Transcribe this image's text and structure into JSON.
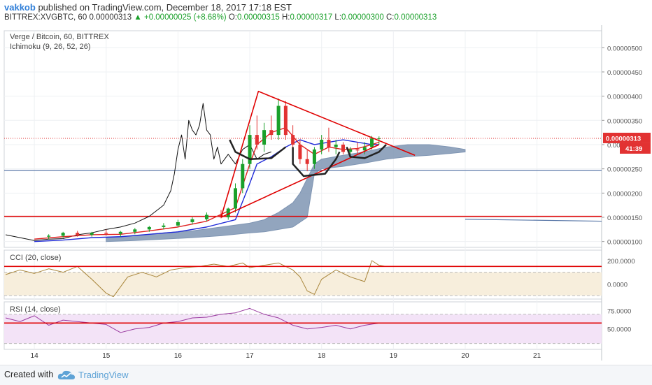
{
  "header": {
    "author": "vakkob",
    "published": "published on TradingView.com, December 18, 2017 17:18 EST",
    "symbol": "BITTREX:XVGBTC, 60",
    "last": "0.00000313",
    "change": "▲ +0.00000025 (+8.68%)",
    "o_label": "O:",
    "o": "0.00000315",
    "h_label": "H:",
    "h": "0.00000317",
    "l_label": "L:",
    "l": "0.00000300",
    "c_label": "C:",
    "c": "0.00000313"
  },
  "footer": {
    "created": "Created with",
    "brand": "TradingView",
    "logo_icon": "tradingview-cloud-icon"
  },
  "colors": {
    "up": "#1aa02a",
    "down": "#e23232",
    "cloud": "#7f95b3",
    "trend": "#e00000",
    "hline": "#5a78a8",
    "cci": "#a8853a",
    "rsi": "#9a3aa0",
    "tenkan": "#e02020",
    "kijun": "#1f2ad8"
  },
  "chart_data": [
    {
      "type": "candlestick",
      "title": "Verge / Bitcoin, 60, BITTREX",
      "subtitle": "Ichimoku (9, 26, 52, 26)",
      "y_tick_labels": [
        "0.00000100",
        "0.00000150",
        "0.00000200",
        "0.00000250",
        "0.00000300",
        "0.00000350",
        "0.00000400",
        "0.00000450",
        "0.00000500"
      ],
      "y_ticks": [
        1.0,
        1.5,
        2.0,
        2.5,
        3.0,
        3.5,
        4.0,
        4.5,
        5.0
      ],
      "ylim": [
        0.88,
        5.35
      ],
      "y_unit_note": "×1e-6 BTC",
      "x_tick_labels": [
        "14",
        "15",
        "16",
        "17",
        "18",
        "19",
        "20",
        "21"
      ],
      "x_ticks": [
        14,
        15,
        16,
        17,
        18,
        19,
        20,
        21
      ],
      "xlim": [
        13.58,
        21.9
      ],
      "last_price_label": "0.00000313",
      "countdown_label": "41:39",
      "last_price": 3.13,
      "lagging_span": [
        [
          13.6,
          1.14
        ],
        [
          13.8,
          1.08
        ],
        [
          14.0,
          1.02
        ],
        [
          14.2,
          1.05
        ],
        [
          14.4,
          1.06
        ],
        [
          14.6,
          1.14
        ],
        [
          14.8,
          1.18
        ],
        [
          15.0,
          1.25
        ],
        [
          15.2,
          1.3
        ],
        [
          15.4,
          1.38
        ],
        [
          15.6,
          1.52
        ],
        [
          15.8,
          1.75
        ],
        [
          15.9,
          2.05
        ],
        [
          15.95,
          2.4
        ],
        [
          16.0,
          2.9
        ],
        [
          16.05,
          3.2
        ],
        [
          16.1,
          2.7
        ],
        [
          16.15,
          3.5
        ],
        [
          16.2,
          3.3
        ],
        [
          16.25,
          3.2
        ],
        [
          16.3,
          3.4
        ],
        [
          16.35,
          3.85
        ],
        [
          16.4,
          3.3
        ],
        [
          16.45,
          3.2
        ],
        [
          16.5,
          2.7
        ],
        [
          16.55,
          2.95
        ],
        [
          16.6,
          2.6
        ],
        [
          16.7,
          2.8
        ],
        [
          16.8,
          2.6
        ],
        [
          16.9,
          2.9
        ],
        [
          17.0,
          3.0
        ],
        [
          17.1,
          2.7
        ],
        [
          17.2,
          2.8
        ],
        [
          17.3,
          2.85
        ]
      ],
      "candles_ohlc": [
        [
          14.2,
          1.1,
          1.15,
          1.05,
          1.12
        ],
        [
          14.4,
          1.12,
          1.2,
          1.08,
          1.18
        ],
        [
          14.6,
          1.18,
          1.22,
          1.1,
          1.14
        ],
        [
          14.8,
          1.14,
          1.2,
          1.1,
          1.18
        ],
        [
          15.0,
          1.18,
          1.25,
          1.12,
          1.16
        ],
        [
          15.2,
          1.16,
          1.22,
          1.1,
          1.2
        ],
        [
          15.4,
          1.2,
          1.28,
          1.15,
          1.25
        ],
        [
          15.6,
          1.25,
          1.32,
          1.2,
          1.3
        ],
        [
          15.8,
          1.3,
          1.38,
          1.25,
          1.33
        ],
        [
          16.0,
          1.33,
          1.45,
          1.3,
          1.4
        ],
        [
          16.2,
          1.4,
          1.5,
          1.35,
          1.46
        ],
        [
          16.4,
          1.46,
          1.6,
          1.42,
          1.55
        ],
        [
          16.6,
          1.55,
          1.65,
          1.48,
          1.5
        ],
        [
          16.7,
          1.5,
          1.7,
          1.45,
          1.68
        ],
        [
          16.8,
          1.68,
          2.2,
          1.6,
          2.1
        ],
        [
          16.9,
          2.1,
          2.7,
          2.0,
          2.6
        ],
        [
          17.0,
          2.6,
          3.4,
          2.5,
          3.2
        ],
        [
          17.1,
          3.2,
          3.6,
          2.9,
          3.0
        ],
        [
          17.2,
          3.0,
          3.45,
          2.85,
          3.3
        ],
        [
          17.3,
          3.3,
          3.6,
          3.1,
          3.2
        ],
        [
          17.4,
          3.2,
          3.95,
          3.1,
          3.8
        ],
        [
          17.5,
          3.8,
          3.9,
          3.1,
          3.2
        ],
        [
          17.6,
          3.2,
          3.4,
          2.9,
          3.0
        ],
        [
          17.7,
          3.0,
          3.1,
          2.6,
          2.7
        ],
        [
          17.8,
          2.7,
          2.9,
          2.45,
          2.6
        ],
        [
          17.9,
          2.6,
          2.95,
          2.5,
          2.9
        ],
        [
          18.0,
          2.9,
          3.2,
          2.8,
          3.1
        ],
        [
          18.1,
          3.1,
          3.35,
          2.85,
          2.95
        ],
        [
          18.2,
          2.95,
          3.1,
          2.8,
          3.0
        ],
        [
          18.3,
          3.0,
          3.05,
          2.8,
          2.85
        ],
        [
          18.4,
          2.85,
          2.95,
          2.75,
          2.9
        ],
        [
          18.5,
          2.9,
          3.05,
          2.8,
          2.88
        ],
        [
          18.6,
          2.88,
          3.05,
          2.8,
          2.95
        ],
        [
          18.7,
          2.95,
          3.18,
          2.9,
          3.13
        ],
        [
          18.8,
          3.13,
          3.17,
          3.0,
          3.13
        ]
      ],
      "cloud_upper": [
        [
          15.0,
          1.08
        ],
        [
          15.4,
          1.12
        ],
        [
          15.8,
          1.18
        ],
        [
          16.2,
          1.22
        ],
        [
          16.6,
          1.3
        ],
        [
          17.0,
          1.38
        ],
        [
          17.2,
          1.45
        ],
        [
          17.4,
          1.6
        ],
        [
          17.6,
          1.8
        ],
        [
          17.7,
          2.0
        ],
        [
          17.8,
          2.3
        ],
        [
          17.9,
          2.6
        ],
        [
          18.0,
          2.7
        ],
        [
          18.3,
          2.78
        ],
        [
          18.6,
          2.85
        ],
        [
          18.9,
          2.95
        ],
        [
          19.2,
          3.0
        ],
        [
          19.5,
          3.0
        ],
        [
          19.8,
          2.95
        ],
        [
          20.0,
          2.9
        ]
      ],
      "cloud_lower": [
        [
          15.0,
          1.0
        ],
        [
          15.4,
          1.02
        ],
        [
          15.8,
          1.05
        ],
        [
          16.2,
          1.08
        ],
        [
          16.6,
          1.12
        ],
        [
          17.0,
          1.18
        ],
        [
          17.2,
          1.2
        ],
        [
          17.4,
          1.25
        ],
        [
          17.6,
          1.3
        ],
        [
          17.7,
          1.4
        ],
        [
          17.8,
          1.5
        ],
        [
          17.9,
          2.4
        ],
        [
          18.0,
          2.5
        ],
        [
          18.3,
          2.55
        ],
        [
          18.6,
          2.62
        ],
        [
          18.9,
          2.7
        ],
        [
          19.2,
          2.75
        ],
        [
          19.5,
          2.78
        ],
        [
          19.8,
          2.82
        ],
        [
          20.0,
          2.85
        ]
      ],
      "tenkan_sen": [
        [
          14.0,
          1.05
        ],
        [
          14.4,
          1.1
        ],
        [
          14.8,
          1.14
        ],
        [
          15.2,
          1.15
        ],
        [
          15.6,
          1.22
        ],
        [
          16.0,
          1.3
        ],
        [
          16.4,
          1.42
        ],
        [
          16.8,
          1.7
        ],
        [
          17.0,
          2.6
        ],
        [
          17.1,
          3.0
        ],
        [
          17.3,
          3.25
        ],
        [
          17.5,
          3.35
        ],
        [
          17.7,
          3.0
        ],
        [
          17.9,
          2.8
        ],
        [
          18.1,
          2.95
        ],
        [
          18.3,
          2.9
        ],
        [
          18.5,
          2.92
        ],
        [
          18.7,
          3.0
        ],
        [
          18.8,
          3.05
        ]
      ],
      "kijun_sen": [
        [
          14.0,
          1.0
        ],
        [
          14.4,
          1.03
        ],
        [
          14.8,
          1.08
        ],
        [
          15.2,
          1.1
        ],
        [
          15.6,
          1.15
        ],
        [
          16.0,
          1.2
        ],
        [
          16.4,
          1.3
        ],
        [
          16.8,
          1.45
        ],
        [
          17.0,
          2.2
        ],
        [
          17.1,
          2.6
        ],
        [
          17.3,
          2.75
        ],
        [
          17.5,
          2.95
        ],
        [
          17.7,
          3.1
        ],
        [
          17.9,
          3.0
        ],
        [
          18.1,
          3.05
        ],
        [
          18.3,
          3.1
        ],
        [
          18.5,
          3.05
        ],
        [
          18.7,
          3.0
        ],
        [
          18.8,
          3.0
        ]
      ],
      "drawn_lines": {
        "wedge_upper": [
          [
            16.6,
            1.5
          ],
          [
            17.12,
            4.1
          ],
          [
            19.3,
            2.78
          ]
        ],
        "wedge_lower": [
          [
            16.6,
            1.5
          ],
          [
            18.8,
            3.0
          ]
        ],
        "support_red": [
          [
            13.58,
            1.52
          ],
          [
            21.9,
            1.52
          ]
        ],
        "support_blue_right": [
          [
            20.0,
            1.46
          ],
          [
            21.9,
            1.42
          ]
        ],
        "support_blue": [
          [
            13.58,
            2.47
          ],
          [
            21.9,
            2.47
          ]
        ],
        "cup_left": [
          [
            16.72,
            3.1
          ],
          [
            16.8,
            2.85
          ],
          [
            17.0,
            2.7
          ],
          [
            17.3,
            2.72
          ],
          [
            17.5,
            2.95
          ]
        ],
        "cup_mid": [
          [
            17.6,
            2.95
          ],
          [
            17.6,
            2.6
          ],
          [
            17.75,
            2.35
          ],
          [
            18.05,
            2.4
          ],
          [
            18.2,
            2.7
          ],
          [
            18.25,
            2.85
          ]
        ],
        "cup_right": [
          [
            18.35,
            2.95
          ],
          [
            18.4,
            2.75
          ],
          [
            18.6,
            2.72
          ],
          [
            18.8,
            2.85
          ],
          [
            18.9,
            3.0
          ]
        ]
      }
    },
    {
      "type": "line",
      "title": "CCI (20, close)",
      "y_tick_labels": [
        "0.0000",
        "200.0000"
      ],
      "y_ticks": [
        0,
        200
      ],
      "ylim": [
        -130,
        290
      ],
      "band": [
        -100,
        100
      ],
      "hline_red": 150,
      "x": [
        13.6,
        13.8,
        14.0,
        14.2,
        14.4,
        14.6,
        14.8,
        15.0,
        15.1,
        15.3,
        15.5,
        15.7,
        15.9,
        16.1,
        16.3,
        16.5,
        16.7,
        16.9,
        17.0,
        17.2,
        17.4,
        17.6,
        17.7,
        17.8,
        17.9,
        18.0,
        18.2,
        18.4,
        18.6,
        18.7,
        18.8,
        18.9
      ],
      "values": [
        80,
        120,
        90,
        130,
        100,
        150,
        40,
        -80,
        -110,
        60,
        100,
        60,
        120,
        140,
        150,
        170,
        150,
        180,
        140,
        160,
        180,
        120,
        60,
        -60,
        -90,
        40,
        120,
        60,
        20,
        200,
        160,
        150
      ]
    },
    {
      "type": "line",
      "title": "RSI (14, close)",
      "y_tick_labels": [
        "50.0000",
        "75.0000"
      ],
      "y_ticks": [
        50,
        75
      ],
      "ylim": [
        22,
        87
      ],
      "band": [
        30,
        70
      ],
      "hline_red": 58,
      "x": [
        13.6,
        13.8,
        14.0,
        14.2,
        14.4,
        14.6,
        14.8,
        15.0,
        15.2,
        15.4,
        15.6,
        15.8,
        16.0,
        16.2,
        16.4,
        16.6,
        16.8,
        17.0,
        17.2,
        17.4,
        17.6,
        17.8,
        18.0,
        18.2,
        18.4,
        18.6,
        18.8
      ],
      "values": [
        65,
        60,
        68,
        55,
        62,
        60,
        58,
        56,
        45,
        50,
        52,
        58,
        60,
        65,
        66,
        70,
        72,
        78,
        70,
        65,
        55,
        50,
        52,
        55,
        50,
        55,
        58
      ]
    }
  ]
}
